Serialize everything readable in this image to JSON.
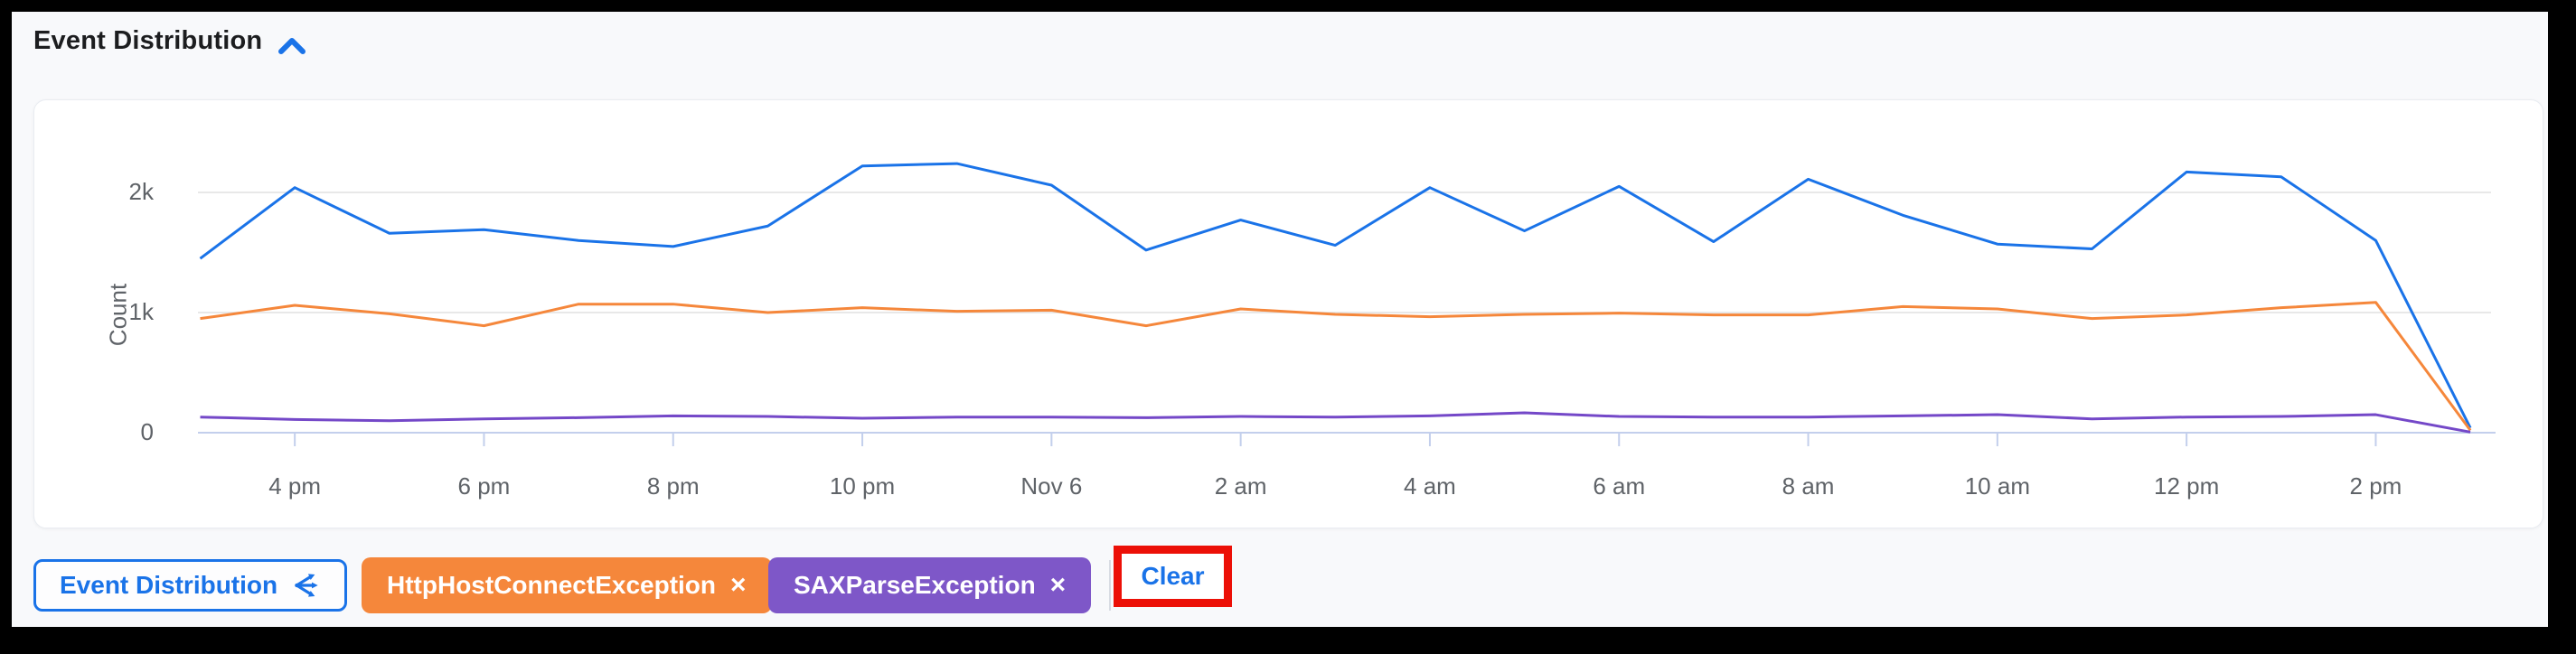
{
  "header": {
    "title": "Event Distribution",
    "collapse_icon": "chevron-up"
  },
  "chart_data": {
    "type": "line",
    "title": "Event Distribution",
    "xlabel": "",
    "ylabel": "Count",
    "grid": "horizontal",
    "legend_position": "none",
    "ylim": [
      0,
      2750
    ],
    "x": [
      "3 pm",
      "4 pm",
      "5 pm",
      "6 pm",
      "7 pm",
      "8 pm",
      "9 pm",
      "10 pm",
      "11 pm",
      "12 am (Nov 6)",
      "1 am",
      "2 am",
      "3 am",
      "4 am",
      "5 am",
      "6 am",
      "7 am",
      "8 am",
      "9 am",
      "10 am",
      "11 am",
      "12 pm",
      "1 pm",
      "2 pm",
      "3 pm"
    ],
    "x_tick_labels": [
      "4 pm",
      "6 pm",
      "8 pm",
      "10 pm",
      "Nov 6",
      "2 am",
      "4 am",
      "6 am",
      "8 am",
      "10 am",
      "12 pm",
      "2 pm"
    ],
    "y_ticks": [
      {
        "label": "0",
        "value": 0
      },
      {
        "label": "1k",
        "value": 1000
      },
      {
        "label": "2k",
        "value": 2000
      }
    ],
    "series": [
      {
        "name": "unlabeled",
        "color": "#1a73e8",
        "values": [
          1450,
          2040,
          1660,
          1690,
          1600,
          1550,
          1720,
          2220,
          2240,
          2060,
          1520,
          1770,
          1560,
          2040,
          1680,
          2050,
          1590,
          2110,
          1810,
          1570,
          1530,
          2170,
          2130,
          1600,
          40
        ]
      },
      {
        "name": "HttpHostConnectException",
        "color": "#f5873b",
        "values": [
          950,
          1060,
          990,
          890,
          1070,
          1070,
          1000,
          1040,
          1010,
          1020,
          890,
          1030,
          985,
          965,
          985,
          995,
          980,
          980,
          1050,
          1030,
          950,
          980,
          1040,
          1085,
          20
        ]
      },
      {
        "name": "SAXParseException",
        "color": "#7448c8",
        "values": [
          130,
          110,
          100,
          115,
          125,
          140,
          135,
          120,
          130,
          130,
          125,
          135,
          130,
          140,
          165,
          135,
          130,
          130,
          140,
          150,
          115,
          130,
          135,
          150,
          5
        ]
      }
    ]
  },
  "legend_bar": {
    "chart_button": {
      "label": "Event Distribution",
      "icon": "share-icon"
    },
    "filter_chips": [
      {
        "label": "HttpHostConnectException",
        "remove_icon": "×",
        "color": "#f5873b"
      },
      {
        "label": "SAXParseException",
        "remove_icon": "×",
        "color": "#7e57c8"
      }
    ],
    "clear_button": {
      "label": "Clear"
    }
  },
  "annotation": {
    "type": "highlight-box",
    "target": "clear-button",
    "color": "#ec1007"
  },
  "colors": {
    "accent_blue": "#1a73e8",
    "page_background": "#f8f9fb",
    "card_background": "#ffffff",
    "gridline": "#e8e8e8",
    "axis_line": "#c3cfec",
    "tick_text": "#5f6368",
    "title_text": "#1c1d1f",
    "annotation_red": "#ec1007"
  }
}
